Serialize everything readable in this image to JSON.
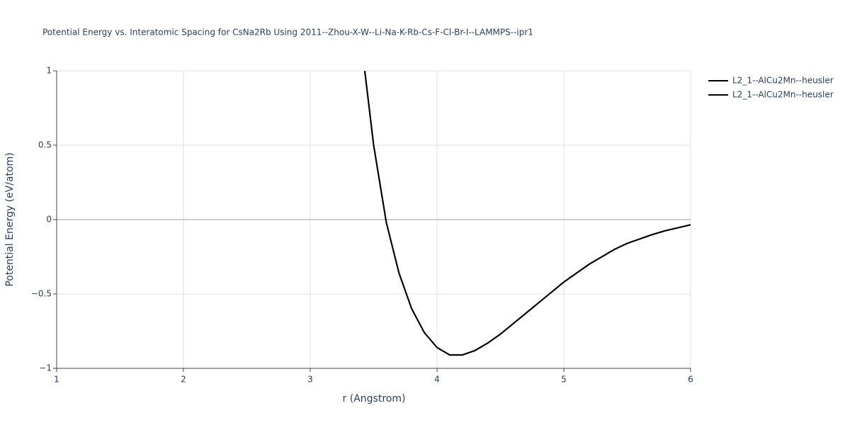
{
  "chart_data": {
    "type": "line",
    "title": "Potential Energy vs. Interatomic Spacing for CsNa2Rb Using 2011--Zhou-X-W--Li-Na-K-Rb-Cs-F-Cl-Br-I--LAMMPS--ipr1",
    "x_label": "r (Angstrom)",
    "y_label": "Potential Energy (eV/atom)",
    "x": [
      3.43,
      3.5,
      3.6,
      3.7,
      3.8,
      3.9,
      4.0,
      4.1,
      4.2,
      4.3,
      4.4,
      4.5,
      4.6,
      4.7,
      4.8,
      4.9,
      5.0,
      5.1,
      5.2,
      5.3,
      5.4,
      5.5,
      5.6,
      5.7,
      5.8,
      5.9,
      6.0
    ],
    "series": [
      {
        "name": "L2_1--AlCu2Mn--heusler",
        "color": "#000000",
        "values": [
          1.0,
          0.5,
          -0.02,
          -0.36,
          -0.6,
          -0.76,
          -0.86,
          -0.91,
          -0.91,
          -0.88,
          -0.83,
          -0.77,
          -0.7,
          -0.63,
          -0.56,
          -0.49,
          -0.42,
          -0.36,
          -0.3,
          -0.25,
          -0.2,
          -0.16,
          -0.13,
          -0.1,
          -0.075,
          -0.055,
          -0.035
        ]
      },
      {
        "name": "L2_1--AlCu2Mn--heusler",
        "color": "#000000",
        "values": [
          1.0,
          0.5,
          -0.02,
          -0.36,
          -0.6,
          -0.76,
          -0.86,
          -0.91,
          -0.91,
          -0.88,
          -0.83,
          -0.77,
          -0.7,
          -0.63,
          -0.56,
          -0.49,
          -0.42,
          -0.36,
          -0.3,
          -0.25,
          -0.2,
          -0.16,
          -0.13,
          -0.1,
          -0.075,
          -0.055,
          -0.035
        ]
      }
    ],
    "xlim": [
      1,
      6
    ],
    "xticks": [
      1,
      2,
      3,
      4,
      5,
      6
    ],
    "ylim": [
      -1,
      1
    ],
    "yticks": [
      {
        "value": -1,
        "label": "−1"
      },
      {
        "value": -0.5,
        "label": "−0.5"
      },
      0,
      0.5,
      1
    ],
    "grid": true,
    "legend": "top-right"
  }
}
